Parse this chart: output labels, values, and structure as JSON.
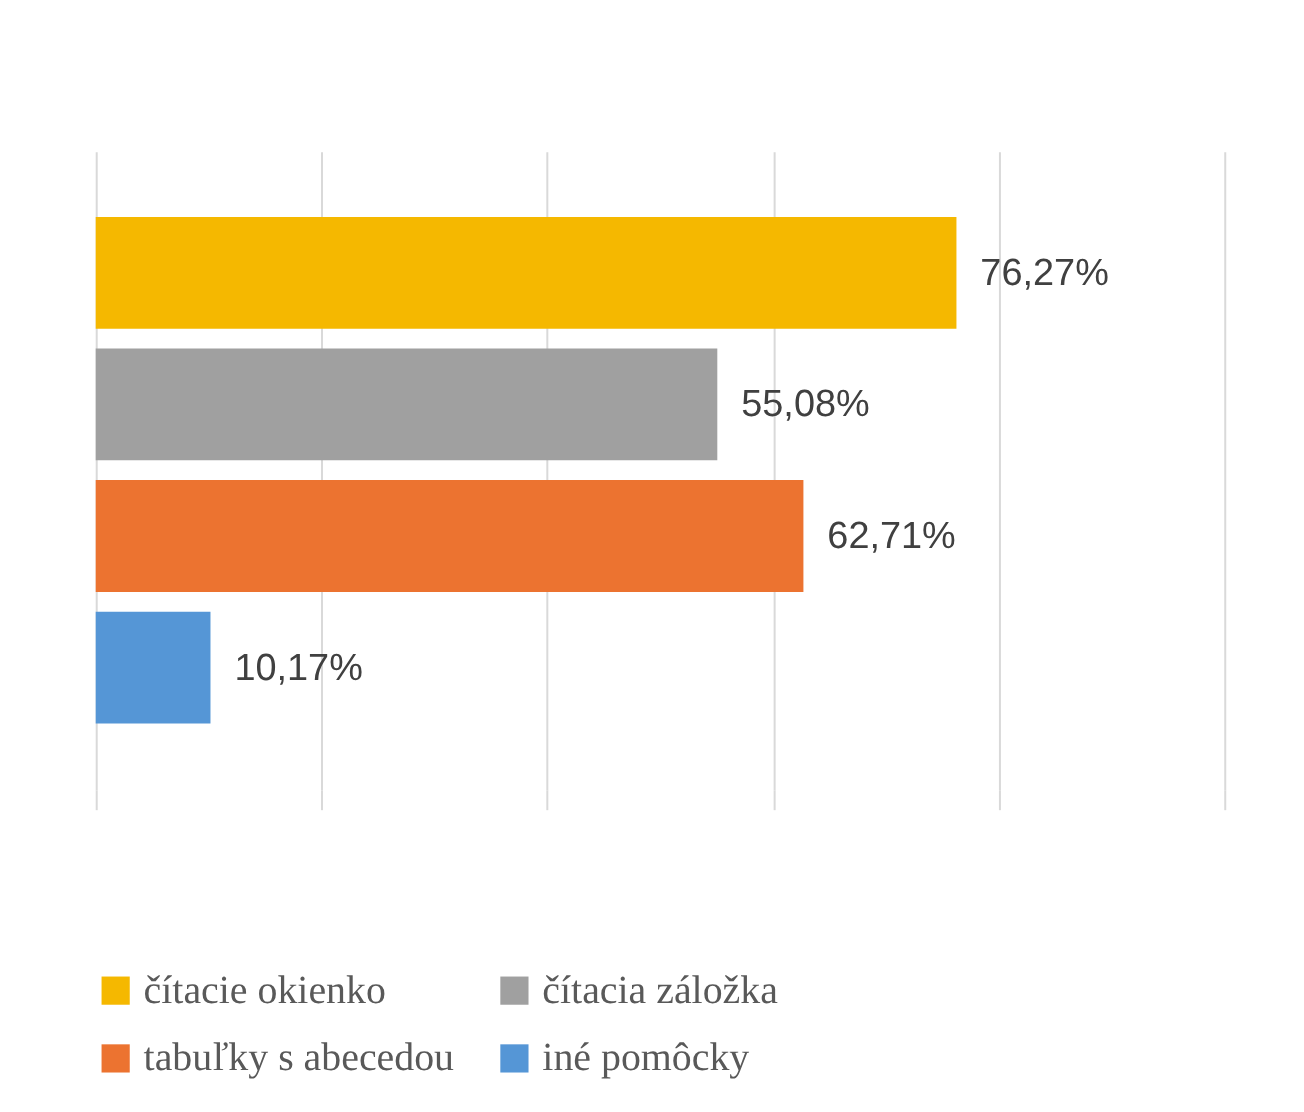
{
  "chart_data": {
    "type": "bar",
    "orientation": "horizontal",
    "categories": [
      null
    ],
    "series": [
      {
        "name": "čítacie okienko",
        "color": "#f5b800",
        "values": [
          76.27
        ],
        "value_labels": [
          "76,27%"
        ]
      },
      {
        "name": "čítacia záložka",
        "color": "#a0a0a0",
        "values": [
          55.08
        ],
        "value_labels": [
          "55,08%"
        ]
      },
      {
        "name": "tabuľky s abecedou",
        "color": "#ec7330",
        "values": [
          62.71
        ],
        "value_labels": [
          "62,71%"
        ]
      },
      {
        "name": "iné pomôcky",
        "color": "#5596d6",
        "values": [
          10.17
        ],
        "value_labels": [
          "10,17%"
        ]
      }
    ],
    "xlim": [
      0,
      100
    ],
    "xticks": [
      {
        "value": 0,
        "label": null
      },
      {
        "value": 20,
        "label": null
      },
      {
        "value": 40,
        "label": null
      },
      {
        "value": 60,
        "label": null
      },
      {
        "value": 80,
        "label": null
      },
      {
        "value": 100,
        "label": null
      }
    ],
    "grid": "x",
    "tick_labels": false,
    "legend": "bottom"
  }
}
